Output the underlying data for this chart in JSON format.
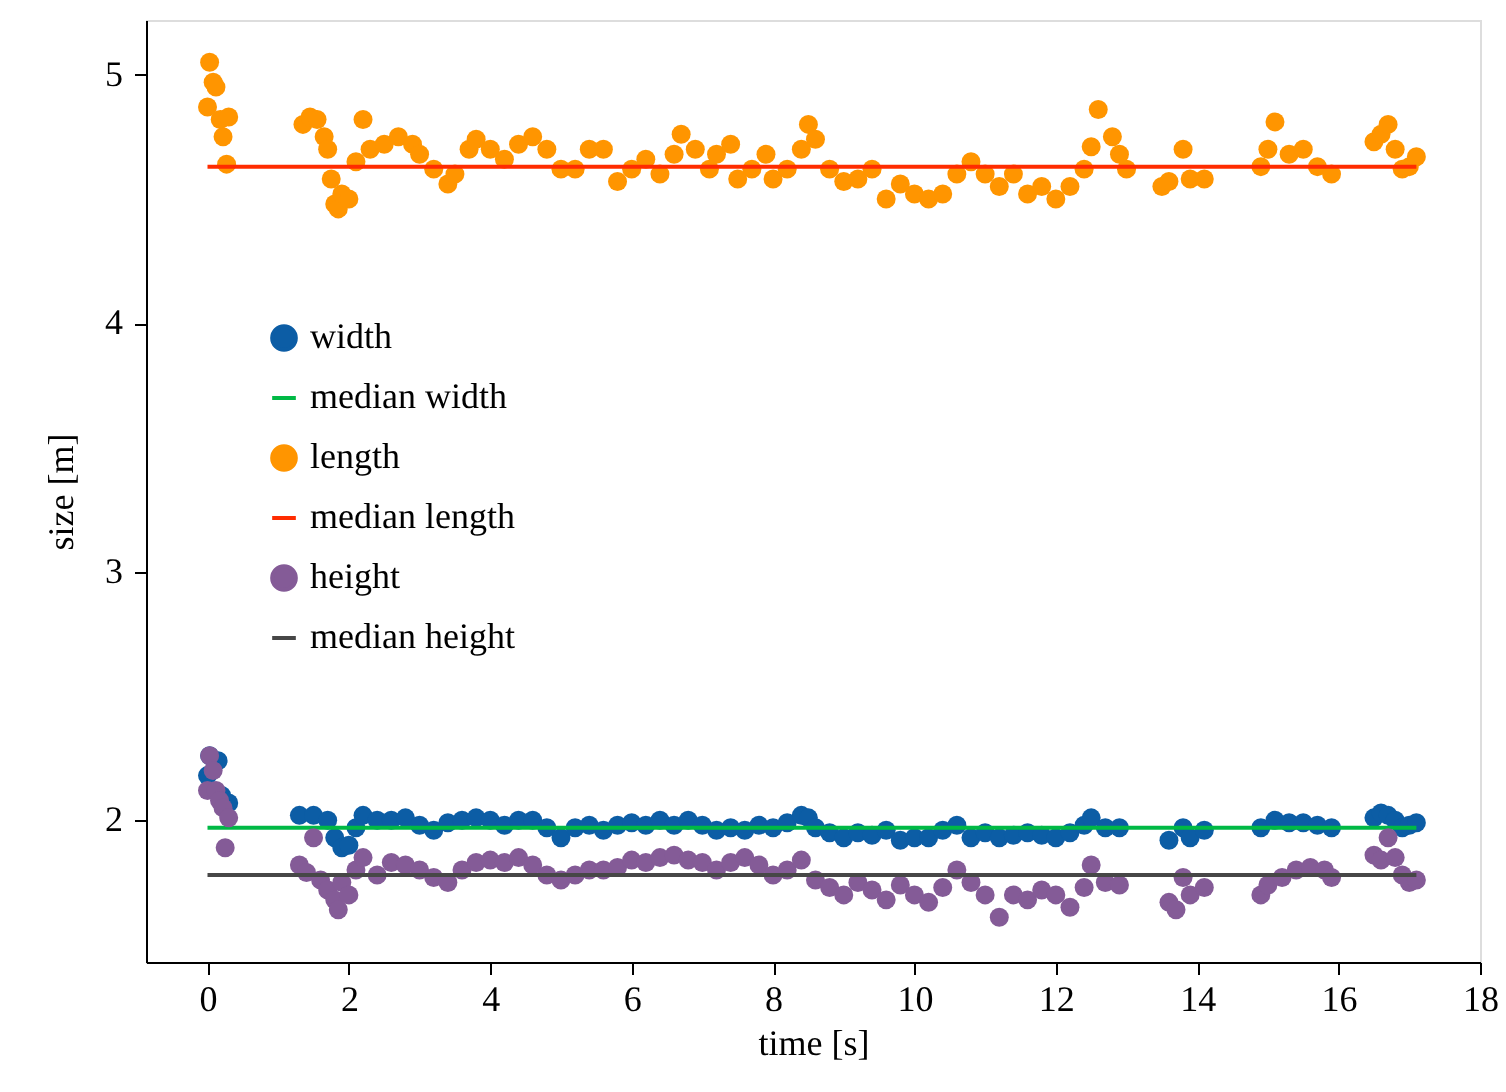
{
  "chart_data": {
    "type": "scatter",
    "xlabel": "time [s]",
    "ylabel": "size [m]",
    "xlim": [
      -0.87,
      18
    ],
    "ylim": [
      1.43,
      5.22
    ],
    "xticks": [
      0,
      2,
      4,
      6,
      8,
      10,
      12,
      14,
      16,
      18
    ],
    "yticks": [
      2,
      3,
      4,
      5
    ],
    "grid": false,
    "legend": "left",
    "series": [
      {
        "name": "width",
        "marker": "circle",
        "color": "#0c5da5",
        "x": [
          0.0,
          0.03,
          0.15,
          0.2,
          0.3,
          1.3,
          1.5,
          1.7,
          1.8,
          1.9,
          2.0,
          2.1,
          2.2,
          2.4,
          2.6,
          2.8,
          3.0,
          3.2,
          3.4,
          3.6,
          3.8,
          4.0,
          4.2,
          4.4,
          4.6,
          4.8,
          5.0,
          5.2,
          5.4,
          5.6,
          5.8,
          6.0,
          6.2,
          6.4,
          6.6,
          6.8,
          7.0,
          7.2,
          7.4,
          7.6,
          7.8,
          8.0,
          8.2,
          8.4,
          8.5,
          8.6,
          8.8,
          9.0,
          9.2,
          9.4,
          9.6,
          9.8,
          10.0,
          10.2,
          10.4,
          10.6,
          10.8,
          11.0,
          11.2,
          11.4,
          11.6,
          11.8,
          12.0,
          12.2,
          12.4,
          12.5,
          12.7,
          12.9,
          13.6,
          13.8,
          13.9,
          14.1,
          14.9,
          15.1,
          15.3,
          15.5,
          15.7,
          15.9,
          16.5,
          16.6,
          16.7,
          16.8,
          16.9,
          17.0,
          17.1
        ],
        "values": [
          2.18,
          2.26,
          2.24,
          2.1,
          2.07,
          2.02,
          2.02,
          2.0,
          1.93,
          1.89,
          1.9,
          1.97,
          2.02,
          2.0,
          2.0,
          2.01,
          1.98,
          1.96,
          1.99,
          2.0,
          2.01,
          2.0,
          1.98,
          2.0,
          2.0,
          1.97,
          1.93,
          1.97,
          1.98,
          1.96,
          1.98,
          1.99,
          1.98,
          2.0,
          1.98,
          2.0,
          1.98,
          1.96,
          1.97,
          1.96,
          1.98,
          1.97,
          1.99,
          2.02,
          2.01,
          1.97,
          1.95,
          1.93,
          1.95,
          1.94,
          1.96,
          1.92,
          1.93,
          1.93,
          1.96,
          1.98,
          1.93,
          1.95,
          1.93,
          1.94,
          1.95,
          1.94,
          1.93,
          1.95,
          1.98,
          2.01,
          1.97,
          1.97,
          1.92,
          1.97,
          1.93,
          1.96,
          1.97,
          2.0,
          1.99,
          1.99,
          1.98,
          1.97,
          2.01,
          2.03,
          2.02,
          2.0,
          1.97,
          1.98,
          1.99
        ]
      },
      {
        "name": "median width",
        "type": "line",
        "color": "#00b945",
        "x": [
          0,
          17.1
        ],
        "values": [
          1.97,
          1.97
        ]
      },
      {
        "name": "length",
        "marker": "circle",
        "color": "#ff9500",
        "x": [
          0.0,
          0.03,
          0.08,
          0.12,
          0.18,
          0.22,
          0.27,
          0.3,
          1.35,
          1.45,
          1.55,
          1.65,
          1.7,
          1.75,
          1.8,
          1.85,
          1.9,
          2.0,
          2.1,
          2.2,
          2.3,
          2.5,
          2.7,
          2.9,
          3.0,
          3.2,
          3.4,
          3.5,
          3.7,
          3.8,
          4.0,
          4.2,
          4.4,
          4.6,
          4.8,
          5.0,
          5.2,
          5.4,
          5.6,
          5.8,
          6.0,
          6.2,
          6.4,
          6.6,
          6.7,
          6.9,
          7.1,
          7.2,
          7.4,
          7.5,
          7.7,
          7.9,
          8.0,
          8.2,
          8.4,
          8.5,
          8.6,
          8.8,
          9.0,
          9.2,
          9.4,
          9.6,
          9.8,
          10.0,
          10.2,
          10.4,
          10.6,
          10.8,
          11.0,
          11.2,
          11.4,
          11.6,
          11.8,
          12.0,
          12.2,
          12.4,
          12.5,
          12.6,
          12.8,
          12.9,
          13.0,
          13.5,
          13.6,
          13.8,
          13.9,
          14.1,
          14.9,
          15.0,
          15.1,
          15.3,
          15.5,
          15.7,
          15.9,
          16.5,
          16.6,
          16.7,
          16.8,
          16.9,
          17.0,
          17.1
        ],
        "values": [
          4.87,
          5.05,
          4.97,
          4.95,
          4.82,
          4.75,
          4.64,
          4.83,
          4.8,
          4.83,
          4.82,
          4.75,
          4.7,
          4.58,
          4.48,
          4.46,
          4.52,
          4.5,
          4.65,
          4.82,
          4.7,
          4.72,
          4.75,
          4.72,
          4.68,
          4.62,
          4.56,
          4.6,
          4.7,
          4.74,
          4.7,
          4.66,
          4.72,
          4.75,
          4.7,
          4.62,
          4.62,
          4.7,
          4.7,
          4.57,
          4.62,
          4.66,
          4.6,
          4.68,
          4.76,
          4.7,
          4.62,
          4.68,
          4.72,
          4.58,
          4.62,
          4.68,
          4.58,
          4.62,
          4.7,
          4.8,
          4.74,
          4.62,
          4.57,
          4.58,
          4.62,
          4.5,
          4.56,
          4.52,
          4.5,
          4.52,
          4.6,
          4.65,
          4.6,
          4.55,
          4.6,
          4.52,
          4.55,
          4.5,
          4.55,
          4.62,
          4.71,
          4.86,
          4.75,
          4.68,
          4.62,
          4.55,
          4.57,
          4.7,
          4.58,
          4.58,
          4.63,
          4.7,
          4.81,
          4.68,
          4.7,
          4.63,
          4.6,
          4.73,
          4.76,
          4.8,
          4.7,
          4.62,
          4.63,
          4.67
        ]
      },
      {
        "name": "median length",
        "type": "line",
        "color": "#ff2c00",
        "x": [
          0,
          17.1
        ],
        "values": [
          4.63,
          4.63
        ]
      },
      {
        "name": "height",
        "marker": "circle",
        "color": "#845b97",
        "x": [
          0.0,
          0.03,
          0.08,
          0.12,
          0.17,
          0.22,
          0.25,
          0.3,
          1.3,
          1.4,
          1.5,
          1.6,
          1.7,
          1.8,
          1.85,
          1.9,
          2.0,
          2.1,
          2.2,
          2.4,
          2.6,
          2.8,
          3.0,
          3.2,
          3.4,
          3.6,
          3.8,
          4.0,
          4.2,
          4.4,
          4.6,
          4.8,
          5.0,
          5.2,
          5.4,
          5.6,
          5.8,
          6.0,
          6.2,
          6.4,
          6.6,
          6.8,
          7.0,
          7.2,
          7.4,
          7.6,
          7.8,
          8.0,
          8.2,
          8.4,
          8.6,
          8.8,
          9.0,
          9.2,
          9.4,
          9.6,
          9.8,
          10.0,
          10.2,
          10.4,
          10.6,
          10.8,
          11.0,
          11.2,
          11.4,
          11.6,
          11.8,
          12.0,
          12.2,
          12.4,
          12.5,
          12.7,
          12.9,
          13.6,
          13.7,
          13.8,
          13.9,
          14.1,
          14.9,
          15.0,
          15.2,
          15.4,
          15.6,
          15.8,
          15.9,
          16.5,
          16.6,
          16.7,
          16.8,
          16.9,
          17.0,
          17.1
        ],
        "values": [
          2.12,
          2.26,
          2.2,
          2.12,
          2.08,
          2.05,
          1.89,
          2.01,
          1.82,
          1.79,
          1.93,
          1.76,
          1.72,
          1.68,
          1.64,
          1.75,
          1.7,
          1.8,
          1.85,
          1.78,
          1.83,
          1.82,
          1.8,
          1.77,
          1.75,
          1.8,
          1.83,
          1.84,
          1.83,
          1.85,
          1.82,
          1.78,
          1.76,
          1.78,
          1.8,
          1.8,
          1.81,
          1.84,
          1.83,
          1.85,
          1.86,
          1.84,
          1.83,
          1.8,
          1.83,
          1.85,
          1.82,
          1.78,
          1.8,
          1.84,
          1.76,
          1.73,
          1.7,
          1.75,
          1.72,
          1.68,
          1.74,
          1.7,
          1.67,
          1.73,
          1.8,
          1.75,
          1.7,
          1.61,
          1.7,
          1.68,
          1.72,
          1.7,
          1.65,
          1.73,
          1.82,
          1.75,
          1.74,
          1.67,
          1.64,
          1.77,
          1.7,
          1.73,
          1.7,
          1.74,
          1.77,
          1.8,
          1.81,
          1.8,
          1.77,
          1.86,
          1.84,
          1.93,
          1.85,
          1.78,
          1.75,
          1.76
        ]
      },
      {
        "name": "median height",
        "type": "line",
        "color": "#474747",
        "x": [
          0,
          17.1
        ],
        "values": [
          1.78,
          1.78
        ]
      }
    ]
  }
}
